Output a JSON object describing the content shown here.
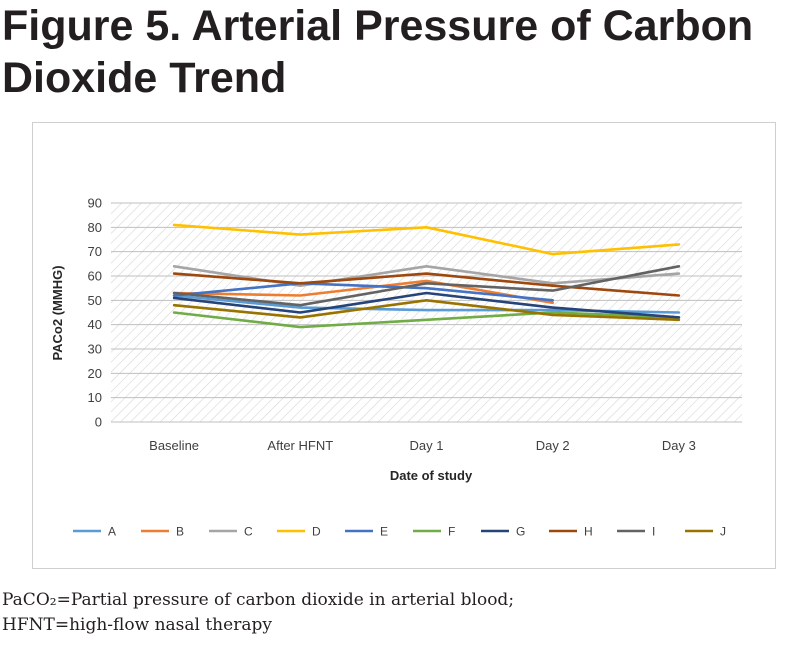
{
  "figure": {
    "title_line1": "Figure 5. Arterial Pressure of Carbon",
    "title_line2": "Dioxide Trend",
    "caption_line1": "PaCO₂=Partial pressure of carbon dioxide in arterial blood;",
    "caption_line2": "HFNT=high-flow nasal therapy"
  },
  "chart_data": {
    "type": "line",
    "title": "",
    "xlabel": "Date of study",
    "ylabel": "PACo2 (MMHG)",
    "ylim": [
      0,
      90
    ],
    "yticks": [
      0,
      10,
      20,
      30,
      40,
      50,
      60,
      70,
      80,
      90
    ],
    "categories": [
      "Baseline",
      "After HFNT",
      "Day 1",
      "Day 2",
      "Day 3"
    ],
    "grid": true,
    "background_pattern": "diagonal-hatch",
    "legend_position": "bottom",
    "series": [
      {
        "name": "A",
        "color": "#5b9bd5",
        "values": [
          52,
          47,
          46,
          46,
          45
        ]
      },
      {
        "name": "B",
        "color": "#ed7d31",
        "values": [
          53,
          52,
          58,
          49,
          null
        ]
      },
      {
        "name": "C",
        "color": "#a5a5a5",
        "values": [
          64,
          56,
          64,
          57,
          61
        ]
      },
      {
        "name": "D",
        "color": "#ffc000",
        "values": [
          81,
          77,
          80,
          69,
          73
        ]
      },
      {
        "name": "E",
        "color": "#4472c4",
        "values": [
          52,
          57,
          55,
          50,
          null
        ]
      },
      {
        "name": "F",
        "color": "#70ad47",
        "values": [
          45,
          39,
          42,
          45,
          43
        ]
      },
      {
        "name": "G",
        "color": "#264478",
        "values": [
          51,
          45,
          53,
          47,
          43
        ]
      },
      {
        "name": "H",
        "color": "#9e480e",
        "values": [
          61,
          57,
          61,
          56,
          52
        ]
      },
      {
        "name": "I",
        "color": "#636363",
        "values": [
          53,
          48,
          57,
          54,
          64
        ]
      },
      {
        "name": "J",
        "color": "#997300",
        "values": [
          48,
          43,
          50,
          44,
          42
        ]
      }
    ]
  }
}
